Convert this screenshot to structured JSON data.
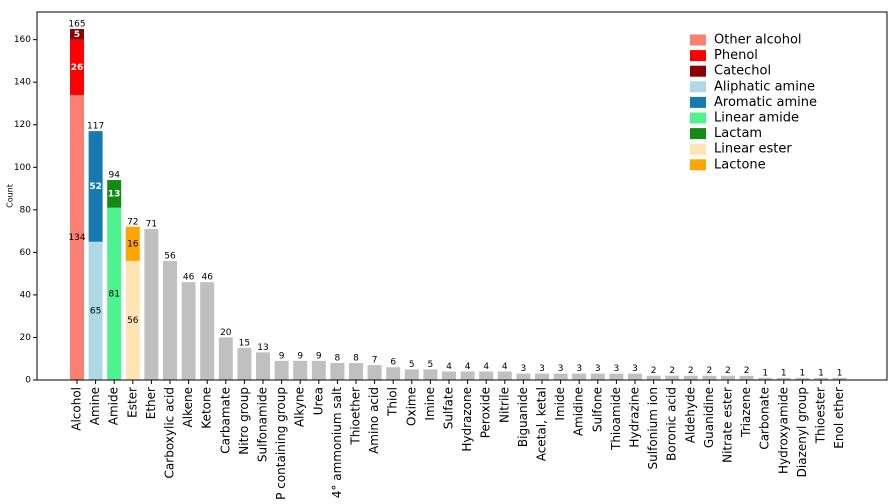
{
  "chart_data": {
    "type": "stacked-bar",
    "y_label": "Count",
    "categories": [
      "Alcohol",
      "Amine",
      "Amide",
      "Ester",
      "Ether",
      "Carboxylic acid",
      "Alkene",
      "Ketone",
      "Carbamate",
      "Nitro group",
      "Sulfonamide",
      "P containing group",
      "Alkyne",
      "Urea",
      "4° ammonium salt",
      "Thioether",
      "Amino acid",
      "Thiol",
      "Oxime",
      "Imine",
      "Sulfate",
      "Hydrazone",
      "Peroxide",
      "Nitrile",
      "Biguanide",
      "Acetal, ketal",
      "Imide",
      "Amidine",
      "Sulfone",
      "Thioamide",
      "Hydrazine",
      "Sulfonium ion",
      "Boronic acid",
      "Aldehyde",
      "Guanidine",
      "Nitrate ester",
      "Triazene",
      "Carbonate",
      "Hydroxyamide",
      "Diazenyl group",
      "Thioester",
      "Enol ether"
    ],
    "series": [
      {
        "name": "Other alcohol",
        "color": "#fa8072",
        "values": [
          134,
          null,
          null,
          null,
          null,
          null,
          null,
          null,
          null,
          null,
          null,
          null,
          null,
          null,
          null,
          null,
          null,
          null,
          null,
          null,
          null,
          null,
          null,
          null,
          null,
          null,
          null,
          null,
          null,
          null,
          null,
          null,
          null,
          null,
          null,
          null,
          null,
          null,
          null,
          null,
          null,
          null
        ]
      },
      {
        "name": "Phenol",
        "color": "#ff0000",
        "values": [
          26,
          null,
          null,
          null,
          null,
          null,
          null,
          null,
          null,
          null,
          null,
          null,
          null,
          null,
          null,
          null,
          null,
          null,
          null,
          null,
          null,
          null,
          null,
          null,
          null,
          null,
          null,
          null,
          null,
          null,
          null,
          null,
          null,
          null,
          null,
          null,
          null,
          null,
          null,
          null,
          null,
          null
        ]
      },
      {
        "name": "Catechol",
        "color": "#8b0000",
        "values": [
          5,
          null,
          null,
          null,
          null,
          null,
          null,
          null,
          null,
          null,
          null,
          null,
          null,
          null,
          null,
          null,
          null,
          null,
          null,
          null,
          null,
          null,
          null,
          null,
          null,
          null,
          null,
          null,
          null,
          null,
          null,
          null,
          null,
          null,
          null,
          null,
          null,
          null,
          null,
          null,
          null,
          null
        ]
      },
      {
        "name": "Aliphatic amine",
        "color": "#add8e6",
        "values": [
          null,
          65,
          null,
          null,
          null,
          null,
          null,
          null,
          null,
          null,
          null,
          null,
          null,
          null,
          null,
          null,
          null,
          null,
          null,
          null,
          null,
          null,
          null,
          null,
          null,
          null,
          null,
          null,
          null,
          null,
          null,
          null,
          null,
          null,
          null,
          null,
          null,
          null,
          null,
          null,
          null,
          null
        ]
      },
      {
        "name": "Aromatic amine",
        "color": "#1679b0",
        "values": [
          null,
          52,
          null,
          null,
          null,
          null,
          null,
          null,
          null,
          null,
          null,
          null,
          null,
          null,
          null,
          null,
          null,
          null,
          null,
          null,
          null,
          null,
          null,
          null,
          null,
          null,
          null,
          null,
          null,
          null,
          null,
          null,
          null,
          null,
          null,
          null,
          null,
          null,
          null,
          null,
          null,
          null
        ]
      },
      {
        "name": "Linear amide",
        "color": "#4ef28e",
        "values": [
          null,
          null,
          81,
          null,
          null,
          null,
          null,
          null,
          null,
          null,
          null,
          null,
          null,
          null,
          null,
          null,
          null,
          null,
          null,
          null,
          null,
          null,
          null,
          null,
          null,
          null,
          null,
          null,
          null,
          null,
          null,
          null,
          null,
          null,
          null,
          null,
          null,
          null,
          null,
          null,
          null,
          null
        ]
      },
      {
        "name": "Lactam",
        "color": "#138a13",
        "values": [
          null,
          null,
          13,
          null,
          null,
          null,
          null,
          null,
          null,
          null,
          null,
          null,
          null,
          null,
          null,
          null,
          null,
          null,
          null,
          null,
          null,
          null,
          null,
          null,
          null,
          null,
          null,
          null,
          null,
          null,
          null,
          null,
          null,
          null,
          null,
          null,
          null,
          null,
          null,
          null,
          null,
          null
        ]
      },
      {
        "name": "Linear ester",
        "color": "#ffe4b5",
        "values": [
          null,
          null,
          null,
          56,
          null,
          null,
          null,
          null,
          null,
          null,
          null,
          null,
          null,
          null,
          null,
          null,
          null,
          null,
          null,
          null,
          null,
          null,
          null,
          null,
          null,
          null,
          null,
          null,
          null,
          null,
          null,
          null,
          null,
          null,
          null,
          null,
          null,
          null,
          null,
          null,
          null,
          null
        ]
      },
      {
        "name": "Lactone",
        "color": "#ffa500",
        "values": [
          null,
          null,
          null,
          16,
          null,
          null,
          null,
          null,
          null,
          null,
          null,
          null,
          null,
          null,
          null,
          null,
          null,
          null,
          null,
          null,
          null,
          null,
          null,
          null,
          null,
          null,
          null,
          null,
          null,
          null,
          null,
          null,
          null,
          null,
          null,
          null,
          null,
          null,
          null,
          null,
          null,
          null
        ]
      },
      {
        "color": "#c0c0c0",
        "values": [
          null,
          null,
          null,
          null,
          71,
          56,
          46,
          46,
          20,
          15,
          13,
          9,
          9,
          9,
          8,
          8,
          7,
          6,
          5,
          5,
          4,
          4,
          4,
          4,
          3,
          3,
          3,
          3,
          3,
          3,
          3,
          2,
          2,
          2,
          2,
          2,
          2,
          1,
          1,
          1,
          1,
          1
        ]
      }
    ],
    "totals": [
      165,
      117,
      94,
      72,
      71,
      56,
      46,
      46,
      20,
      15,
      13,
      9,
      9,
      9,
      8,
      8,
      7,
      6,
      5,
      5,
      4,
      4,
      4,
      4,
      3,
      3,
      3,
      3,
      3,
      3,
      3,
      2,
      2,
      2,
      2,
      2,
      2,
      1,
      1,
      1,
      1,
      1
    ],
    "ylim": [
      0,
      173
    ],
    "yticks": [
      0,
      20,
      40,
      60,
      80,
      100,
      120,
      140,
      160
    ],
    "legend": "upper right"
  }
}
